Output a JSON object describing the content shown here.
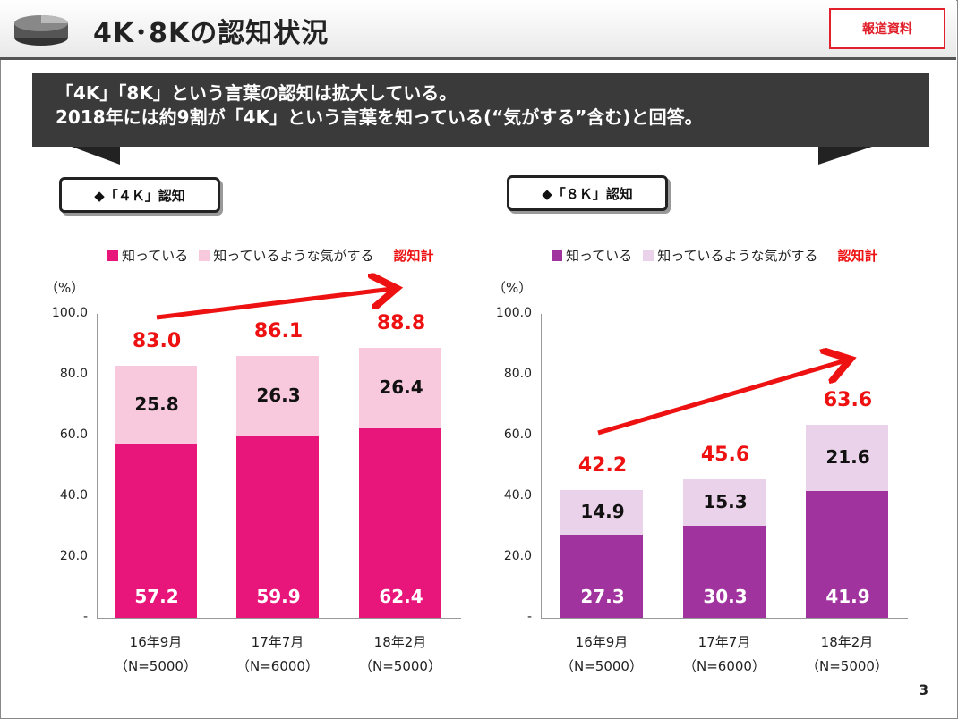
{
  "header": {
    "title": "4K･8Kの認知状況",
    "badge": "報道資料"
  },
  "banner": {
    "line1": "「4K」「8K」という言葉の認知は拡大している。",
    "line2": "2018年には約9割が「4K」という言葉を知っている(“気がする”含む)と回答。"
  },
  "page_number": "3",
  "colors": {
    "pink_dark": "#e8157a",
    "pink_light": "#f8c8dc",
    "purple_dark": "#a0339e",
    "purple_light": "#ead3ea",
    "total_red": "#ee1111"
  },
  "chart_data": [
    {
      "type": "bar",
      "stacked": true,
      "title": "◆「４Ｋ」認知",
      "ylabel": "（%）",
      "ylim": [
        0,
        100
      ],
      "yticks": [
        "-",
        "20.0",
        "40.0",
        "60.0",
        "80.0",
        "100.0"
      ],
      "categories": [
        [
          "16年9月",
          "（N=5000）"
        ],
        [
          "17年7月",
          "（N=6000）"
        ],
        [
          "18年2月",
          "（N=5000）"
        ]
      ],
      "series": [
        {
          "name": "知っている",
          "values": [
            57.2,
            59.9,
            62.4
          ],
          "labels": [
            "57.2",
            "59.9",
            "62.4"
          ]
        },
        {
          "name": "知っているような気がする",
          "values": [
            25.8,
            26.3,
            26.4
          ],
          "labels": [
            "25.8",
            "26.3",
            "26.4"
          ]
        }
      ],
      "total_name": "認知計",
      "totals": [
        83.0,
        86.1,
        88.8
      ],
      "total_labels": [
        "83.0",
        "86.1",
        "88.8"
      ],
      "legend": "top",
      "annotations": [
        "upward trend arrow"
      ]
    },
    {
      "type": "bar",
      "stacked": true,
      "title": "◆「８Ｋ」認知",
      "ylabel": "（%）",
      "ylim": [
        0,
        100
      ],
      "yticks": [
        "-",
        "20.0",
        "40.0",
        "60.0",
        "80.0",
        "100.0"
      ],
      "categories": [
        [
          "16年9月",
          "（N=5000）"
        ],
        [
          "17年7月",
          "（N=6000）"
        ],
        [
          "18年2月",
          "（N=5000）"
        ]
      ],
      "series": [
        {
          "name": "知っている",
          "values": [
            27.3,
            30.3,
            41.9
          ],
          "labels": [
            "27.3",
            "30.3",
            "41.9"
          ]
        },
        {
          "name": "知っているような気がする",
          "values": [
            14.9,
            15.3,
            21.6
          ],
          "labels": [
            "14.9",
            "15.3",
            "21.6"
          ]
        }
      ],
      "total_name": "認知計",
      "totals": [
        42.2,
        45.6,
        63.6
      ],
      "total_labels": [
        "42.2",
        "45.6",
        "63.6"
      ],
      "legend": "top",
      "annotations": [
        "upward trend arrow"
      ]
    }
  ]
}
